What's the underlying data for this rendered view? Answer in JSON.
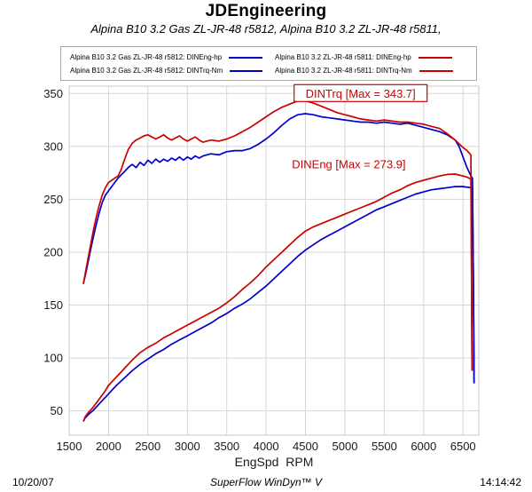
{
  "footer": {
    "date": "10/20/07",
    "software": "SuperFlow WinDyn™ V",
    "time": "14:14:42"
  },
  "chart_data": {
    "type": "line",
    "title": "JDEngineering",
    "subtitle": "Alpina B10 3.2 Gas ZL-JR-48 r5812, Alpina B10 3.2 ZL-JR-48 r5811,",
    "xlabel": "EngSpd  RPM",
    "ylabel": "",
    "xlim": [
      1500,
      6700
    ],
    "ylim": [
      27,
      357
    ],
    "xticks": [
      1500,
      2000,
      2500,
      3000,
      3500,
      4000,
      4500,
      5000,
      5500,
      6000,
      6500
    ],
    "yticks": [
      50,
      100,
      150,
      200,
      250,
      300,
      350
    ],
    "grid": true,
    "legend_position": "top",
    "annotations": [
      {
        "text": "DINTrq [Max = 343.7]",
        "x": 5200,
        "y": 350,
        "boxed": true,
        "color": "#cc0000"
      },
      {
        "text": "DINEng [Max = 273.9]",
        "x": 5050,
        "y": 283,
        "boxed": false,
        "color": "#cc0000"
      }
    ],
    "series": [
      {
        "id": "r5812-dineng-hp",
        "name": "Alpina B10 3.2 Gas ZL-JR-48 r5812: DINEng-hp",
        "color": "#0000cc",
        "unit": "hp",
        "points": [
          [
            1680,
            40
          ],
          [
            1700,
            43
          ],
          [
            1750,
            47
          ],
          [
            1800,
            50
          ],
          [
            1850,
            54
          ],
          [
            1900,
            58
          ],
          [
            1950,
            62
          ],
          [
            2000,
            66
          ],
          [
            2100,
            74
          ],
          [
            2200,
            81
          ],
          [
            2300,
            88
          ],
          [
            2400,
            94
          ],
          [
            2500,
            99
          ],
          [
            2600,
            104
          ],
          [
            2700,
            108
          ],
          [
            2800,
            113
          ],
          [
            2900,
            117
          ],
          [
            3000,
            121
          ],
          [
            3100,
            125
          ],
          [
            3200,
            129
          ],
          [
            3300,
            133
          ],
          [
            3400,
            138
          ],
          [
            3500,
            142
          ],
          [
            3600,
            147
          ],
          [
            3700,
            151
          ],
          [
            3800,
            156
          ],
          [
            3900,
            162
          ],
          [
            4000,
            168
          ],
          [
            4100,
            175
          ],
          [
            4200,
            182
          ],
          [
            4300,
            189
          ],
          [
            4400,
            196
          ],
          [
            4500,
            202
          ],
          [
            4600,
            207
          ],
          [
            4700,
            212
          ],
          [
            4800,
            216
          ],
          [
            4900,
            220
          ],
          [
            5000,
            224
          ],
          [
            5100,
            228
          ],
          [
            5200,
            232
          ],
          [
            5300,
            236
          ],
          [
            5400,
            240
          ],
          [
            5500,
            243
          ],
          [
            5600,
            246
          ],
          [
            5700,
            249
          ],
          [
            5800,
            252
          ],
          [
            5900,
            255
          ],
          [
            6000,
            257
          ],
          [
            6100,
            259
          ],
          [
            6200,
            260
          ],
          [
            6300,
            261
          ],
          [
            6400,
            262
          ],
          [
            6500,
            262
          ],
          [
            6600,
            261
          ],
          [
            6620,
            261
          ],
          [
            6632,
            160
          ],
          [
            6640,
            76
          ]
        ]
      },
      {
        "id": "r5811-dineng-hp",
        "name": "Alpina B10 3.2 ZL-JR-48 r5811: DINEng-hp",
        "color": "#cc0000",
        "unit": "hp",
        "points": [
          [
            1680,
            40
          ],
          [
            1700,
            44
          ],
          [
            1750,
            49
          ],
          [
            1800,
            53
          ],
          [
            1850,
            58
          ],
          [
            1900,
            63
          ],
          [
            1950,
            68
          ],
          [
            2000,
            74
          ],
          [
            2100,
            82
          ],
          [
            2200,
            90
          ],
          [
            2300,
            98
          ],
          [
            2400,
            105
          ],
          [
            2500,
            110
          ],
          [
            2600,
            114
          ],
          [
            2700,
            119
          ],
          [
            2800,
            123
          ],
          [
            2900,
            127
          ],
          [
            3000,
            131
          ],
          [
            3100,
            135
          ],
          [
            3200,
            139
          ],
          [
            3300,
            143
          ],
          [
            3400,
            147
          ],
          [
            3500,
            152
          ],
          [
            3600,
            158
          ],
          [
            3700,
            165
          ],
          [
            3800,
            171
          ],
          [
            3900,
            178
          ],
          [
            4000,
            186
          ],
          [
            4100,
            193
          ],
          [
            4200,
            200
          ],
          [
            4300,
            207
          ],
          [
            4400,
            214
          ],
          [
            4500,
            220
          ],
          [
            4600,
            224
          ],
          [
            4700,
            227
          ],
          [
            4800,
            230
          ],
          [
            4900,
            233
          ],
          [
            5000,
            236
          ],
          [
            5100,
            239
          ],
          [
            5200,
            242
          ],
          [
            5300,
            245
          ],
          [
            5400,
            248
          ],
          [
            5500,
            252
          ],
          [
            5600,
            256
          ],
          [
            5700,
            259
          ],
          [
            5800,
            263
          ],
          [
            5900,
            266
          ],
          [
            6000,
            268
          ],
          [
            6100,
            270
          ],
          [
            6200,
            272
          ],
          [
            6300,
            273.5
          ],
          [
            6400,
            273.9
          ],
          [
            6500,
            272
          ],
          [
            6550,
            271
          ],
          [
            6600,
            269
          ],
          [
            6608,
            180
          ],
          [
            6615,
            88
          ]
        ]
      },
      {
        "id": "r5812-dintrq-nm",
        "name": "Alpina B10 3.2 Gas ZL-JR-48 r5812: DINTrq-Nm",
        "color": "#0000cc",
        "unit": "Nm",
        "points": [
          [
            1680,
            170
          ],
          [
            1720,
            183
          ],
          [
            1760,
            198
          ],
          [
            1800,
            212
          ],
          [
            1840,
            225
          ],
          [
            1880,
            237
          ],
          [
            1920,
            247
          ],
          [
            1960,
            254
          ],
          [
            2000,
            258
          ],
          [
            2040,
            262
          ],
          [
            2080,
            266
          ],
          [
            2120,
            270
          ],
          [
            2160,
            273
          ],
          [
            2200,
            276
          ],
          [
            2250,
            280
          ],
          [
            2300,
            283
          ],
          [
            2350,
            280
          ],
          [
            2400,
            285
          ],
          [
            2450,
            282
          ],
          [
            2500,
            287
          ],
          [
            2550,
            284
          ],
          [
            2600,
            288
          ],
          [
            2650,
            285
          ],
          [
            2700,
            288
          ],
          [
            2750,
            286
          ],
          [
            2800,
            289
          ],
          [
            2850,
            287
          ],
          [
            2900,
            290
          ],
          [
            2950,
            287
          ],
          [
            3000,
            290
          ],
          [
            3050,
            288
          ],
          [
            3100,
            291
          ],
          [
            3150,
            289
          ],
          [
            3200,
            291
          ],
          [
            3300,
            293
          ],
          [
            3400,
            292
          ],
          [
            3500,
            295
          ],
          [
            3600,
            296
          ],
          [
            3700,
            296
          ],
          [
            3800,
            298
          ],
          [
            3900,
            302
          ],
          [
            4000,
            307
          ],
          [
            4100,
            313
          ],
          [
            4200,
            320
          ],
          [
            4300,
            326
          ],
          [
            4400,
            330
          ],
          [
            4500,
            331
          ],
          [
            4600,
            330
          ],
          [
            4700,
            328
          ],
          [
            4800,
            327
          ],
          [
            4900,
            326
          ],
          [
            5000,
            325
          ],
          [
            5100,
            324
          ],
          [
            5200,
            323
          ],
          [
            5300,
            323
          ],
          [
            5400,
            322
          ],
          [
            5500,
            323
          ],
          [
            5600,
            322
          ],
          [
            5700,
            321
          ],
          [
            5800,
            322
          ],
          [
            5900,
            320
          ],
          [
            6000,
            318
          ],
          [
            6100,
            316
          ],
          [
            6200,
            314
          ],
          [
            6300,
            311
          ],
          [
            6400,
            306
          ],
          [
            6450,
            300
          ],
          [
            6500,
            290
          ],
          [
            6550,
            280
          ],
          [
            6600,
            272
          ],
          [
            6620,
            270
          ],
          [
            6632,
            160
          ],
          [
            6640,
            76
          ]
        ]
      },
      {
        "id": "r5811-dintrq-nm",
        "name": "Alpina B10 3.2 ZL-JR-48 r5811: DINTrq-Nm",
        "color": "#cc0000",
        "unit": "Nm",
        "points": [
          [
            1680,
            170
          ],
          [
            1720,
            186
          ],
          [
            1760,
            202
          ],
          [
            1800,
            218
          ],
          [
            1840,
            232
          ],
          [
            1880,
            244
          ],
          [
            1920,
            254
          ],
          [
            1960,
            261
          ],
          [
            2000,
            266
          ],
          [
            2040,
            268
          ],
          [
            2080,
            270
          ],
          [
            2120,
            272
          ],
          [
            2160,
            278
          ],
          [
            2200,
            287
          ],
          [
            2250,
            297
          ],
          [
            2300,
            303
          ],
          [
            2350,
            306
          ],
          [
            2400,
            308
          ],
          [
            2450,
            310
          ],
          [
            2500,
            311
          ],
          [
            2550,
            309
          ],
          [
            2600,
            307
          ],
          [
            2650,
            309
          ],
          [
            2700,
            311
          ],
          [
            2750,
            308
          ],
          [
            2800,
            306
          ],
          [
            2850,
            308
          ],
          [
            2900,
            310
          ],
          [
            2950,
            307
          ],
          [
            3000,
            305
          ],
          [
            3050,
            307
          ],
          [
            3100,
            309
          ],
          [
            3150,
            306
          ],
          [
            3200,
            304
          ],
          [
            3300,
            306
          ],
          [
            3400,
            305
          ],
          [
            3500,
            307
          ],
          [
            3600,
            310
          ],
          [
            3700,
            314
          ],
          [
            3800,
            318
          ],
          [
            3900,
            323
          ],
          [
            4000,
            328
          ],
          [
            4100,
            333
          ],
          [
            4200,
            337
          ],
          [
            4300,
            340
          ],
          [
            4400,
            343
          ],
          [
            4450,
            343.7
          ],
          [
            4500,
            343
          ],
          [
            4600,
            341
          ],
          [
            4700,
            338
          ],
          [
            4800,
            335
          ],
          [
            4900,
            332
          ],
          [
            5000,
            330
          ],
          [
            5100,
            328
          ],
          [
            5200,
            326
          ],
          [
            5300,
            325
          ],
          [
            5400,
            324
          ],
          [
            5500,
            325
          ],
          [
            5600,
            324
          ],
          [
            5700,
            323
          ],
          [
            5800,
            323
          ],
          [
            5900,
            322
          ],
          [
            6000,
            321
          ],
          [
            6100,
            319
          ],
          [
            6200,
            317
          ],
          [
            6300,
            312
          ],
          [
            6400,
            306
          ],
          [
            6500,
            299
          ],
          [
            6550,
            296
          ],
          [
            6600,
            292
          ],
          [
            6608,
            180
          ],
          [
            6615,
            88
          ]
        ]
      }
    ]
  }
}
